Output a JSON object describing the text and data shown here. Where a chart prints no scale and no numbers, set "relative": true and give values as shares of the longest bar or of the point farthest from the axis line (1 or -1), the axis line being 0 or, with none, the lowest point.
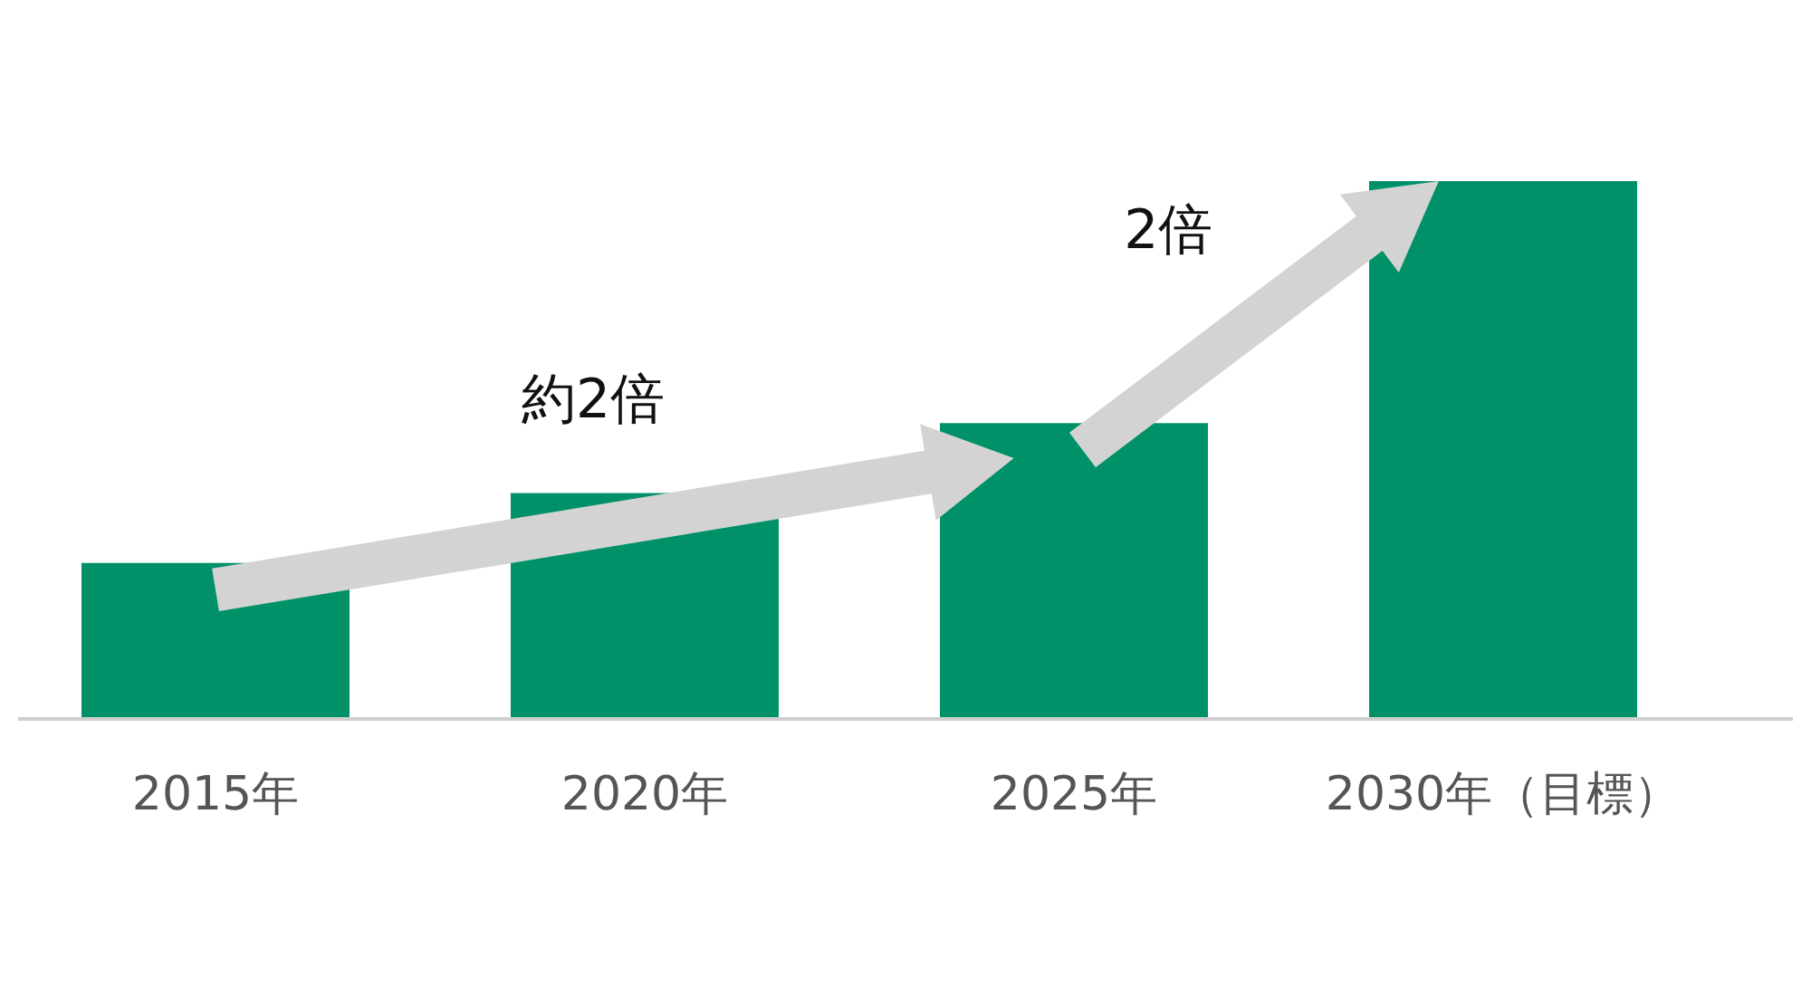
{
  "chart_data": {
    "type": "bar",
    "relative": true,
    "categories": [
      "2015年",
      "2020年",
      "2025年",
      "2030年（目標）"
    ],
    "values": [
      0.29,
      0.42,
      0.55,
      1
    ],
    "color": "#009169",
    "annotations": [
      "約2倍",
      "2倍"
    ]
  }
}
